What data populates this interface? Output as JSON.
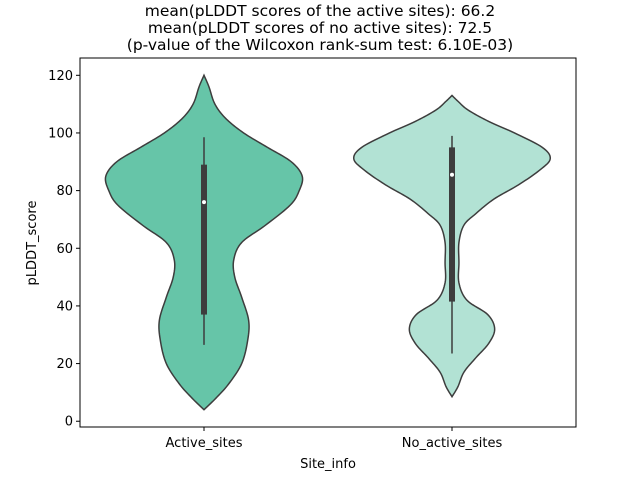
{
  "chart_data": {
    "type": "violin",
    "title_lines": [
      "mean(pLDDT scores of the active sites): 66.2",
      "mean(pLDDT scores of no active sites): 72.5",
      "(p-value of the Wilcoxon rank-sum test: 6.10E-03)"
    ],
    "xlabel": "Site_info",
    "ylabel": "pLDDT_score",
    "ylim": [
      -2,
      126
    ],
    "yticks": [
      0,
      20,
      40,
      60,
      80,
      100,
      120
    ],
    "ytick_labels": [
      "0",
      "20",
      "40",
      "60",
      "80",
      "100",
      "120"
    ],
    "grid": false,
    "categories": [
      "Active_sites",
      "No_active_sites"
    ],
    "series": [
      {
        "category": "Active_sites",
        "color": "#66c5a8",
        "min": 26.5,
        "q1": 37,
        "median": 76,
        "q3": 89,
        "max": 98.5,
        "density_range": [
          4,
          120
        ],
        "density_profile": [
          [
            4,
            0.0
          ],
          [
            8,
            0.12
          ],
          [
            13,
            0.25
          ],
          [
            20,
            0.38
          ],
          [
            28,
            0.44
          ],
          [
            35,
            0.45
          ],
          [
            43,
            0.38
          ],
          [
            50,
            0.31
          ],
          [
            56,
            0.3
          ],
          [
            62,
            0.38
          ],
          [
            68,
            0.62
          ],
          [
            75,
            0.87
          ],
          [
            80,
            0.96
          ],
          [
            85,
            0.99
          ],
          [
            90,
            0.88
          ],
          [
            95,
            0.64
          ],
          [
            100,
            0.4
          ],
          [
            105,
            0.22
          ],
          [
            110,
            0.11
          ],
          [
            116,
            0.05
          ],
          [
            120,
            0.0
          ]
        ]
      },
      {
        "category": "No_active_sites",
        "color": "#b2e2d4",
        "min": 23.5,
        "q1": 41.5,
        "median": 85.5,
        "q3": 95,
        "max": 99,
        "density_range": [
          8.5,
          113
        ],
        "density_profile": [
          [
            8.5,
            0.0
          ],
          [
            12,
            0.06
          ],
          [
            17,
            0.12
          ],
          [
            22,
            0.24
          ],
          [
            27,
            0.37
          ],
          [
            32,
            0.43
          ],
          [
            37,
            0.36
          ],
          [
            42,
            0.15
          ],
          [
            48,
            0.07
          ],
          [
            55,
            0.07
          ],
          [
            62,
            0.07
          ],
          [
            68,
            0.12
          ],
          [
            72,
            0.24
          ],
          [
            77,
            0.42
          ],
          [
            82,
            0.67
          ],
          [
            87,
            0.88
          ],
          [
            91,
            0.99
          ],
          [
            95,
            0.91
          ],
          [
            100,
            0.63
          ],
          [
            104,
            0.37
          ],
          [
            108,
            0.16
          ],
          [
            111,
            0.06
          ],
          [
            113,
            0.0
          ]
        ]
      }
    ]
  }
}
